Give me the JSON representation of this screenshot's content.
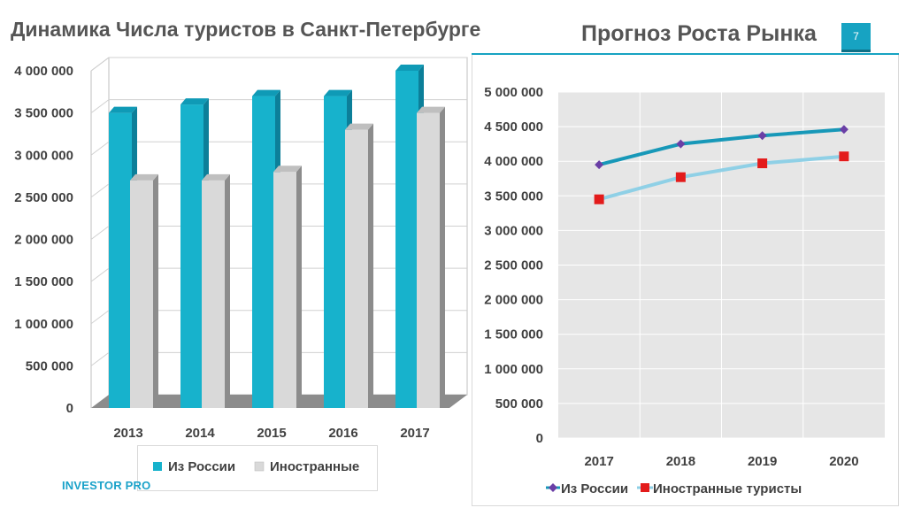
{
  "page": {
    "left_title": "Динамика Числа туристов в Санкт-Петербурге",
    "right_title": "Прогноз Роста Рынка",
    "page_number": "7",
    "brand": "INVESTOR PRO"
  },
  "colors": {
    "russia": "#17b2cc",
    "foreign": "#d9d9d9",
    "russia_line": "#1798b8",
    "foreign_line": "#8fd0e6",
    "russia_marker": "#6a3fa6",
    "foreign_marker": "#e31b1b"
  },
  "chart_data": [
    {
      "type": "bar",
      "categories": [
        "2013",
        "2014",
        "2015",
        "2016",
        "2017"
      ],
      "series": [
        {
          "name": "Из России",
          "values": [
            3500000,
            3600000,
            3700000,
            3700000,
            4000000
          ]
        },
        {
          "name": "Иностранные",
          "values": [
            2700000,
            2700000,
            2800000,
            3300000,
            3500000
          ]
        }
      ],
      "ylim": [
        0,
        4000000
      ],
      "yticks": [
        0,
        500000,
        1000000,
        1500000,
        2000000,
        2500000,
        3000000,
        3500000,
        4000000
      ],
      "ytick_labels": [
        "0",
        "500 000",
        "1 000 000",
        "1 500 000",
        "2 000 000",
        "2 500 000",
        "3 000 000",
        "3 500 000",
        "4 000 000"
      ],
      "legend": "bottom",
      "style": "3d"
    },
    {
      "type": "line",
      "categories": [
        "2017",
        "2018",
        "2019",
        "2020"
      ],
      "series": [
        {
          "name": "Из России",
          "values": [
            3950000,
            4250000,
            4370000,
            4460000
          ]
        },
        {
          "name": "Иностранные туристы",
          "values": [
            3450000,
            3770000,
            3970000,
            4070000
          ]
        }
      ],
      "ylim": [
        0,
        5000000
      ],
      "yticks": [
        0,
        500000,
        1000000,
        1500000,
        2000000,
        2500000,
        3000000,
        3500000,
        4000000,
        4500000,
        5000000
      ],
      "ytick_labels": [
        "0",
        "500 000",
        "1 000 000",
        "1 500 000",
        "2 000 000",
        "2 500 000",
        "3 000 000",
        "3 500 000",
        "4 000 000",
        "4 500 000",
        "5 000 000"
      ],
      "legend": "bottom",
      "grid": true
    }
  ]
}
